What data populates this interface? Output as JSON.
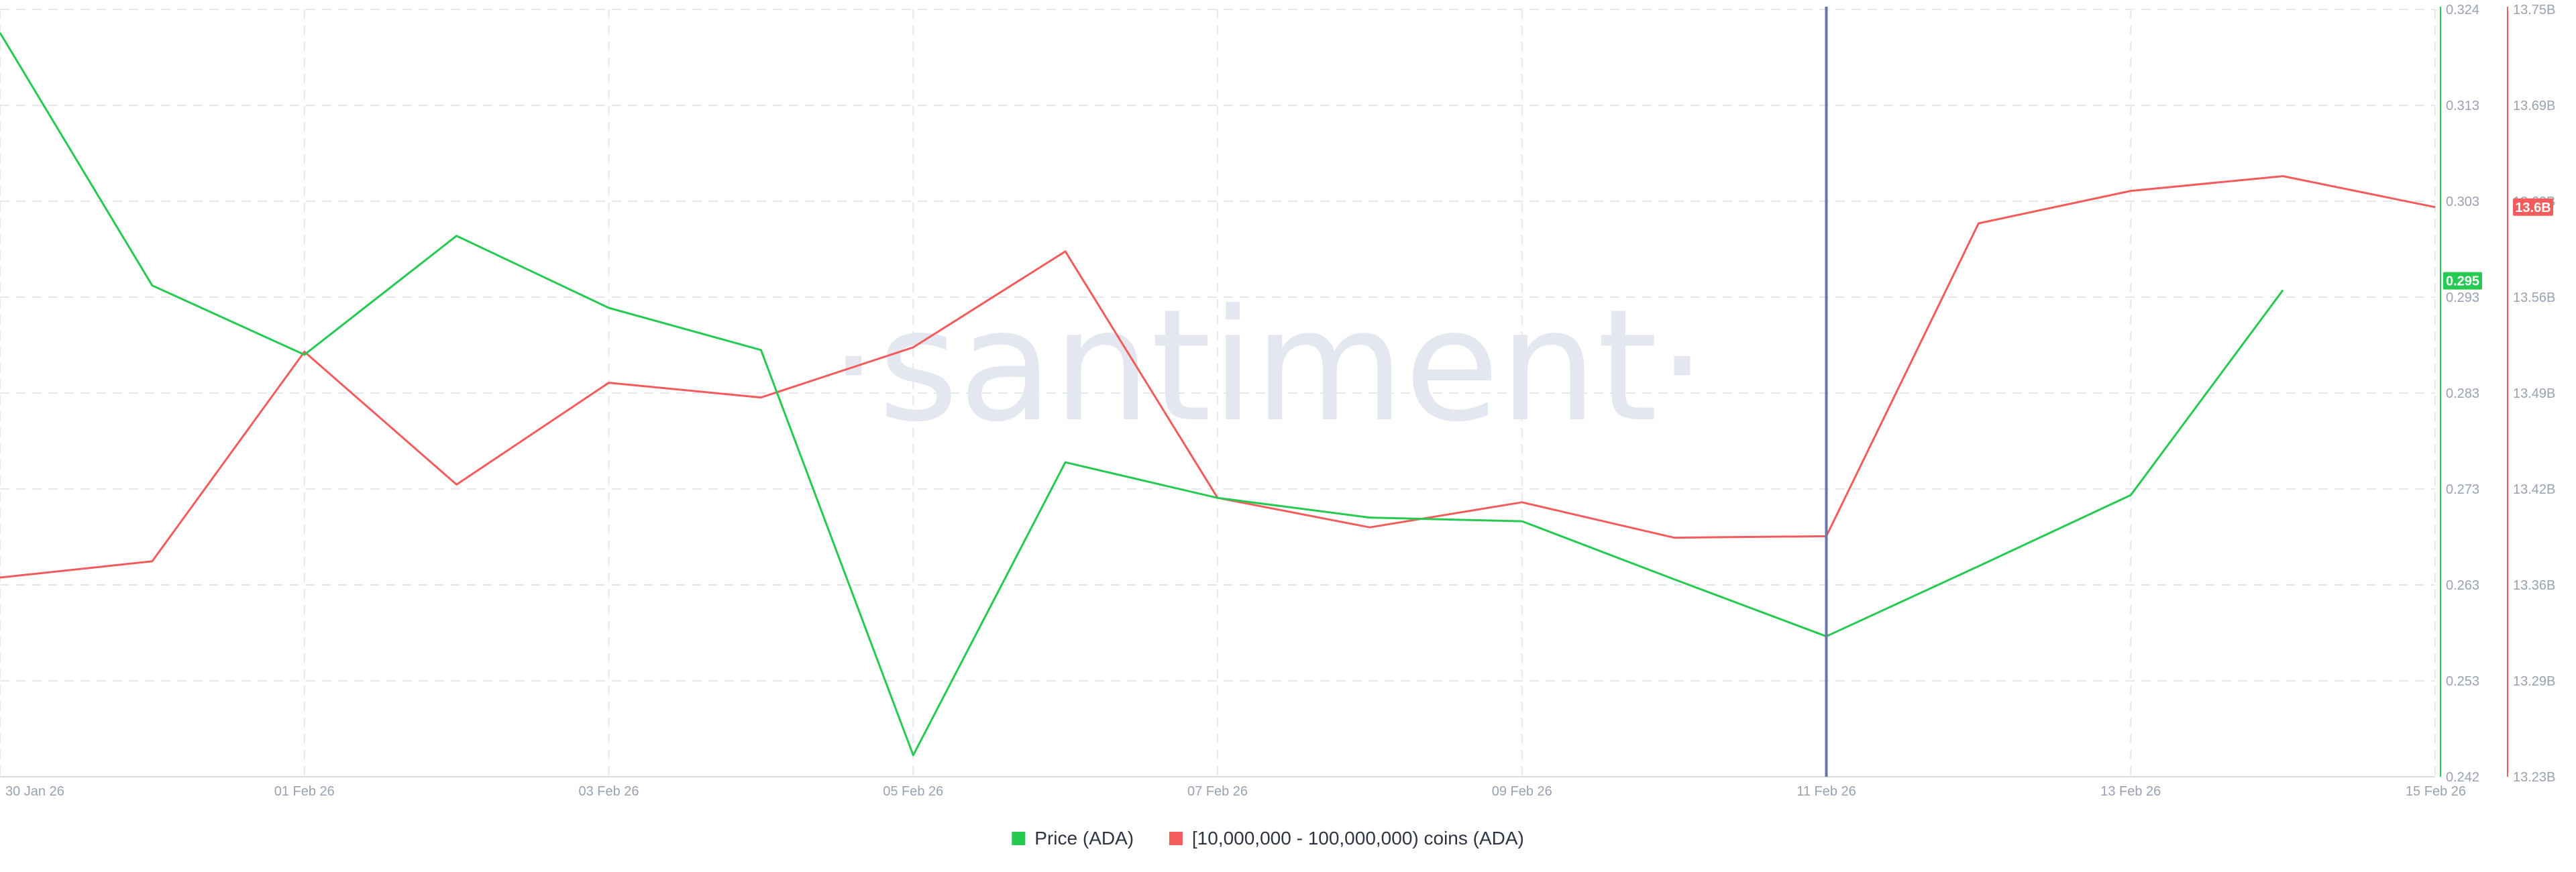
{
  "watermark": "·santiment·",
  "colors": {
    "price": "#26c952",
    "holders": "#f25c5c",
    "crosshair": "#6b76a8",
    "grid": "#e6e8ee",
    "axis_text": "#9aa1b0"
  },
  "legend": [
    {
      "label": "Price (ADA)",
      "color": "#26c952"
    },
    {
      "label": "[10,000,000 - 100,000,000) coins (ADA)",
      "color": "#f25c5c"
    }
  ],
  "chart_data": {
    "type": "line",
    "x": [
      "30 Jan 26",
      "31 Jan 26",
      "01 Feb 26",
      "02 Feb 26",
      "03 Feb 26",
      "04 Feb 26",
      "05 Feb 26",
      "06 Feb 26",
      "07 Feb 26",
      "08 Feb 26",
      "09 Feb 26",
      "10 Feb 26",
      "11 Feb 26",
      "12 Feb 26",
      "13 Feb 26",
      "14 Feb 26",
      "15 Feb 26"
    ],
    "x_ticks": [
      "30 Jan 26",
      "01 Feb 26",
      "03 Feb 26",
      "05 Feb 26",
      "07 Feb 26",
      "09 Feb 26",
      "11 Feb 26",
      "13 Feb 26",
      "15 Feb 26"
    ],
    "series": [
      {
        "name": "Price (ADA)",
        "axis": "left",
        "values": [
          0.3215,
          0.2945,
          0.2871,
          0.2998,
          0.2921,
          0.2876,
          0.2443,
          0.2756,
          0.2718,
          0.2697,
          0.2693,
          0.2631,
          0.257,
          0.2645,
          0.2721,
          0.294,
          null
        ]
      },
      {
        "name": "[10,000,000 - 100,000,000) coins (ADA)",
        "axis": "right",
        "values": [
          13.365,
          13.376,
          13.518,
          13.428,
          13.497,
          13.487,
          13.521,
          13.586,
          13.419,
          13.399,
          13.416,
          13.392,
          13.393,
          13.605,
          13.627,
          13.637,
          13.616
        ]
      }
    ],
    "y_left": {
      "ticks": [
        "0.242",
        "0.253",
        "0.263",
        "0.273",
        "0.283",
        "0.293",
        "0.303",
        "0.313",
        "0.324"
      ],
      "range": [
        0.242,
        0.324
      ]
    },
    "y_right": {
      "ticks": [
        "13.23B",
        "13.29B",
        "13.36B",
        "13.42B",
        "13.49B",
        "13.56B",
        "13.62B",
        "13.69B",
        "13.75B"
      ],
      "range": [
        13.23,
        13.75
      ]
    },
    "last_value_badges": [
      {
        "series": "Price (ADA)",
        "label": "0.295",
        "value": 0.295
      },
      {
        "series": "[10,000,000 - 100,000,000) coins (ADA)",
        "label": "13.6B",
        "value": 13.616
      }
    ],
    "crosshair_at": "11 Feb 26",
    "grid": true,
    "legend_position": "bottom-center"
  }
}
